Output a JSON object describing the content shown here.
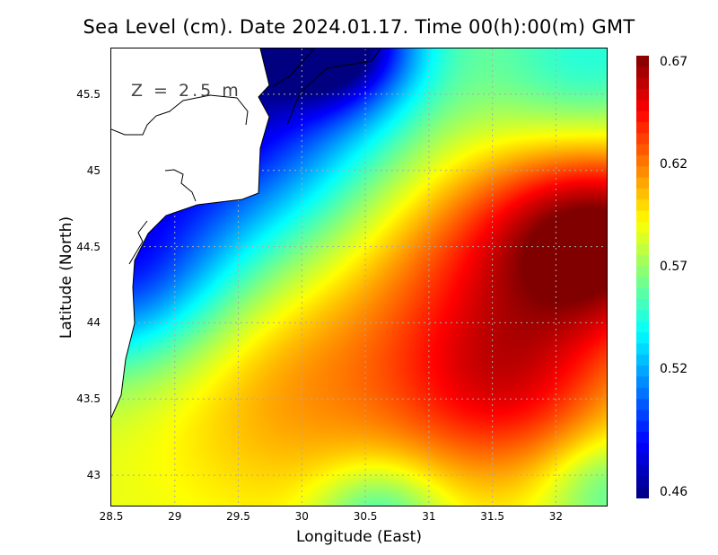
{
  "chart_data": {
    "type": "heatmap",
    "title": "Sea Level (cm). Date 2024.01.17. Time 00(h):00(m) GMT",
    "xlabel": "Longitude (East)",
    "ylabel": "Latitude (North)",
    "annotation": "Z = 2.5 m",
    "xlim": [
      28.5,
      32.4
    ],
    "ylim": [
      42.8,
      45.8
    ],
    "xticks": [
      "28.5",
      "29",
      "29.5",
      "30",
      "30.5",
      "31",
      "31.5",
      "32"
    ],
    "xtick_values": [
      28.5,
      29,
      29.5,
      30,
      30.5,
      31,
      31.5,
      32
    ],
    "yticks": [
      "43",
      "43.5",
      "44",
      "44.5",
      "45",
      "45.5"
    ],
    "ytick_values": [
      43,
      43.5,
      44,
      44.5,
      45,
      45.5
    ],
    "grid": true,
    "colorbar": {
      "min": 0.46,
      "max": 0.67,
      "ticks": [
        "0.67",
        "0.62",
        "0.57",
        "0.52",
        "0.46"
      ],
      "tick_values": [
        0.67,
        0.62,
        0.57,
        0.52,
        0.46
      ],
      "colormap": "jet",
      "placement": "right"
    },
    "field_model": {
      "base": 0.585,
      "blobs": [
        {
          "lon": 32.35,
          "lat": 44.55,
          "amp": 0.09,
          "sigma": 0.45
        },
        {
          "lon": 31.6,
          "lat": 43.6,
          "amp": 0.055,
          "sigma": 0.45
        },
        {
          "lon": 30.0,
          "lat": 43.65,
          "amp": 0.03,
          "sigma": 0.6
        },
        {
          "lon": 31.2,
          "lat": 44.5,
          "amp": 0.03,
          "sigma": 0.5
        },
        {
          "lon": 29.2,
          "lat": 45.5,
          "amp": -0.12,
          "sigma": 0.75
        },
        {
          "lon": 28.5,
          "lat": 44.3,
          "amp": -0.07,
          "sigma": 0.45
        },
        {
          "lon": 30.3,
          "lat": 45.85,
          "amp": -0.09,
          "sigma": 0.3
        },
        {
          "lon": 30.6,
          "lat": 42.72,
          "amp": -0.04,
          "sigma": 0.25
        },
        {
          "lon": 32.4,
          "lat": 42.9,
          "amp": -0.03,
          "sigma": 0.25
        },
        {
          "lon": 32.3,
          "lat": 45.7,
          "amp": -0.04,
          "sigma": 0.45
        }
      ]
    }
  }
}
